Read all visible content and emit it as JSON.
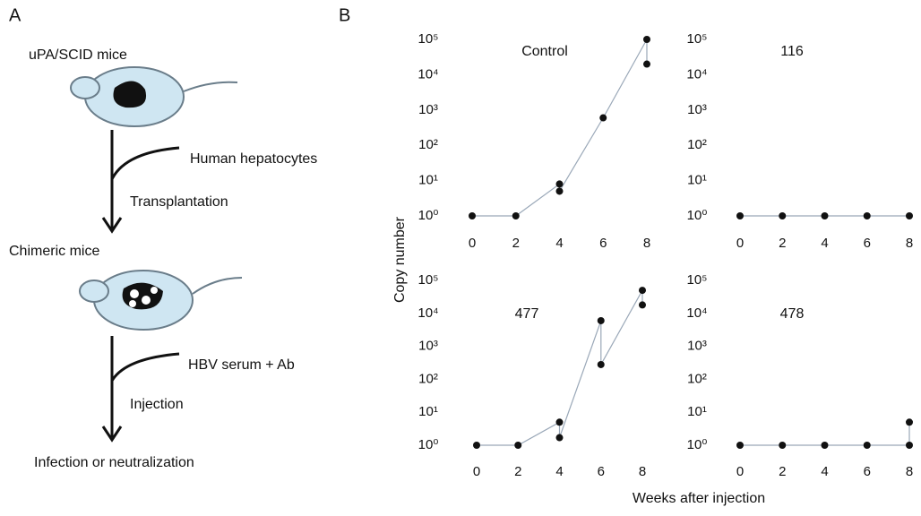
{
  "panel_a": {
    "label": "A",
    "top_mouse": "uPA/SCID mice",
    "cells": "Human hepatocytes",
    "step1": "Transplantation",
    "middle_mouse": "Chimeric mice",
    "inoculum": "HBV serum + Ab",
    "step2": "Injection",
    "outcome": "Infection or neutralization"
  },
  "panel_b": {
    "label": "B",
    "y_label": "Copy number",
    "x_label": "Weeks after injection"
  },
  "chart_data": [
    {
      "type": "scatter",
      "title": "Control",
      "x": [
        0,
        2,
        4,
        4,
        6,
        8,
        8
      ],
      "values": [
        1,
        1,
        8,
        5,
        600,
        100000,
        20000
      ],
      "color": "#111111",
      "line_color": "#9aa8b8",
      "xlim": [
        0,
        8
      ],
      "xticks": [
        0,
        2,
        4,
        6,
        8
      ],
      "ylim": [
        1,
        100000
      ],
      "log_y": true,
      "yticks": [
        {
          "value": 1,
          "label": "10⁰"
        },
        {
          "value": 10,
          "label": "10¹"
        },
        {
          "value": 100,
          "label": "10²"
        },
        {
          "value": 1000,
          "label": "10³"
        },
        {
          "value": 10000,
          "label": "10⁴"
        },
        {
          "value": 100000,
          "label": "10⁵"
        }
      ]
    },
    {
      "type": "scatter",
      "title": "116",
      "x": [
        0,
        2,
        4,
        6,
        8
      ],
      "values": [
        1,
        1,
        1,
        1,
        1
      ],
      "color": "#111111",
      "line_color": "#9aa8b8",
      "xlim": [
        0,
        8
      ],
      "xticks": [
        0,
        2,
        4,
        6,
        8
      ],
      "ylim": [
        1,
        100000
      ],
      "log_y": true,
      "yticks": [
        {
          "value": 1,
          "label": "10⁰"
        },
        {
          "value": 10,
          "label": "10¹"
        },
        {
          "value": 100,
          "label": "10²"
        },
        {
          "value": 1000,
          "label": "10³"
        },
        {
          "value": 10000,
          "label": "10⁴"
        },
        {
          "value": 100000,
          "label": "10⁵"
        }
      ]
    },
    {
      "type": "scatter",
      "title": "477",
      "x": [
        0,
        2,
        4,
        4,
        6,
        6,
        8,
        8
      ],
      "values": [
        1,
        1,
        5,
        1.7,
        6000,
        280,
        50000,
        18000
      ],
      "color": "#111111",
      "line_color": "#9aa8b8",
      "xlim": [
        0,
        8
      ],
      "xticks": [
        0,
        2,
        4,
        6,
        8
      ],
      "ylim": [
        1,
        100000
      ],
      "log_y": true,
      "yticks": [
        {
          "value": 1,
          "label": "10⁰"
        },
        {
          "value": 10,
          "label": "10¹"
        },
        {
          "value": 100,
          "label": "10²"
        },
        {
          "value": 1000,
          "label": "10³"
        },
        {
          "value": 10000,
          "label": "10⁴"
        },
        {
          "value": 100000,
          "label": "10⁵"
        }
      ]
    },
    {
      "type": "scatter",
      "title": "478",
      "x": [
        0,
        2,
        4,
        6,
        8,
        8
      ],
      "values": [
        1,
        1,
        1,
        1,
        1,
        5
      ],
      "color": "#111111",
      "line_color": "#9aa8b8",
      "xlim": [
        0,
        8
      ],
      "xticks": [
        0,
        2,
        4,
        6,
        8
      ],
      "ylim": [
        1,
        100000
      ],
      "log_y": true,
      "yticks": [
        {
          "value": 1,
          "label": "10⁰"
        },
        {
          "value": 10,
          "label": "10¹"
        },
        {
          "value": 100,
          "label": "10²"
        },
        {
          "value": 1000,
          "label": "10³"
        },
        {
          "value": 10000,
          "label": "10⁴"
        },
        {
          "value": 100000,
          "label": "10⁵"
        }
      ]
    }
  ]
}
